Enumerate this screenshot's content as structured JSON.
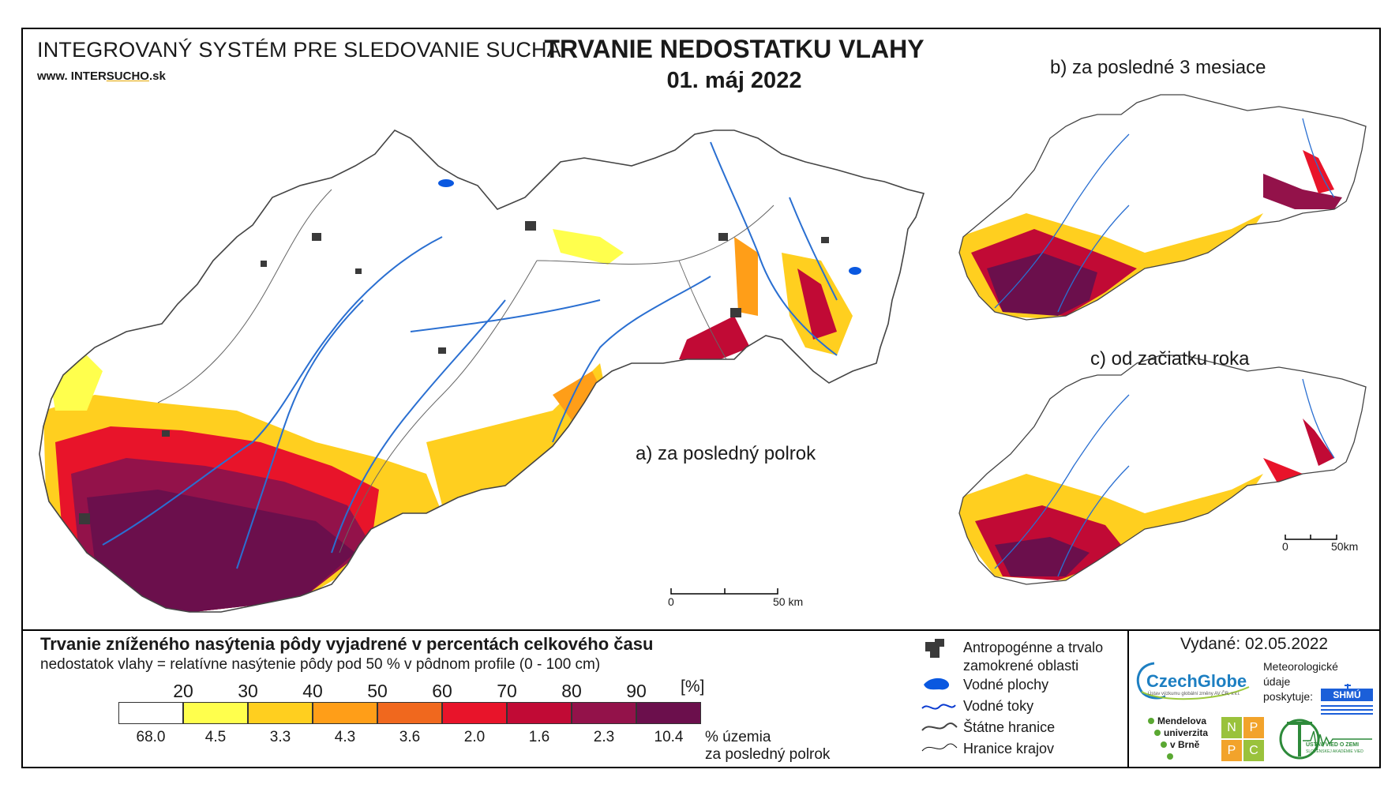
{
  "header": {
    "system_title": "INTEGROVANÝ SYSTÉM PRE SLEDOVANIE SUCHA",
    "www_prefix": "www. ",
    "www_a": "INTER",
    "www_b": "SUCHO",
    "www_c": ".sk",
    "title": "TRVANIE NEDOSTATKU VLAHY",
    "date": "01. máj 2022"
  },
  "maps": {
    "main_caption": "a) za posledný polrok",
    "b_caption": "b) za posledné 3 mesiace",
    "c_caption": "c) od začiatku roka",
    "scale_main_0": "0",
    "scale_main_50": "50 km",
    "scale_small_0": "0",
    "scale_small_50": "50km"
  },
  "legend": {
    "title": "Trvanie zníženého nasýtenia pôdy vyjadrené v percentách celkového času",
    "subtitle": "nedostatok vlahy = relatívne nasýtenie pôdy pod 50 % v pôdnom profile (0 - 100 cm)",
    "thresholds": [
      "20",
      "30",
      "40",
      "50",
      "60",
      "70",
      "80",
      "90"
    ],
    "unit": "[%]",
    "colors": [
      "#ffffff",
      "#ffff4d",
      "#ffcf1f",
      "#ff9e18",
      "#f0681e",
      "#e8142a",
      "#c10a35",
      "#93124a",
      "#6b0f4c"
    ],
    "percentages": [
      "68.0",
      "4.5",
      "3.3",
      "4.3",
      "3.6",
      "2.0",
      "1.6",
      "2.3",
      "10.4"
    ],
    "pct_label_1": "% územia",
    "pct_label_2": "za posledný polrok"
  },
  "symbols": {
    "anthropogenic_1": "Antropogénne a trvalo",
    "anthropogenic_2": "zamokrené oblasti",
    "water_bodies": "Vodné plochy",
    "streams": "Vodné toky",
    "state_border": "Štátne hranice",
    "region_border": "Hranice krajov"
  },
  "issued": "Vydané: 02.05.2022",
  "logos": {
    "czechglobe": "CzechGlobe",
    "czechglobe_sub": "Ústav výzkumu globální změny AV ČR, v.v.i.",
    "met_1": "Meteorologické",
    "met_2": "údaje",
    "met_3": "poskytuje:",
    "shmu": "SHMÚ",
    "mendel_1": "Mendelova",
    "mendel_2": "univerzita",
    "mendel_3": "v Brně",
    "nppc": [
      "N",
      "P",
      "P",
      "C"
    ],
    "uvz": "ÚSTAV VIED O ZEMI",
    "uvz_sub": "SLOVENSKEJ AKADÉMIE VIED"
  }
}
